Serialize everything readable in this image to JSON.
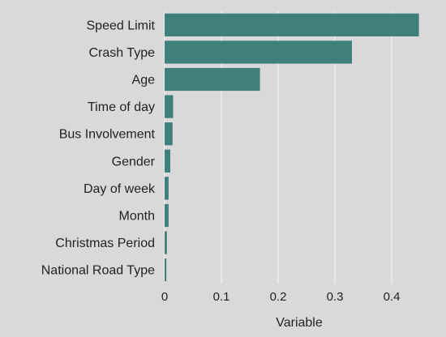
{
  "chart_data": {
    "type": "bar",
    "orientation": "horizontal",
    "title": "",
    "xlabel": "Variable",
    "ylabel": "",
    "categories": [
      "Speed Limit",
      "Crash Type",
      "Age",
      "Time of day",
      "Bus Involvement",
      "Gender",
      "Day of week",
      "Month",
      "Christmas Period",
      "National Road Type"
    ],
    "values": [
      0.448,
      0.33,
      0.168,
      0.015,
      0.014,
      0.01,
      0.007,
      0.007,
      0.004,
      0.003
    ],
    "xlim": [
      0,
      0.5
    ],
    "x_ticks": [
      0,
      0.1,
      0.2,
      0.3,
      0.4
    ],
    "x_tick_labels": [
      "0",
      "0.1",
      "0.2",
      "0.3",
      "0.4"
    ],
    "grid": "vertical",
    "bar_color": "#3f7f7c",
    "background_color": "#d9d9d9",
    "grid_color": "#ececec"
  }
}
